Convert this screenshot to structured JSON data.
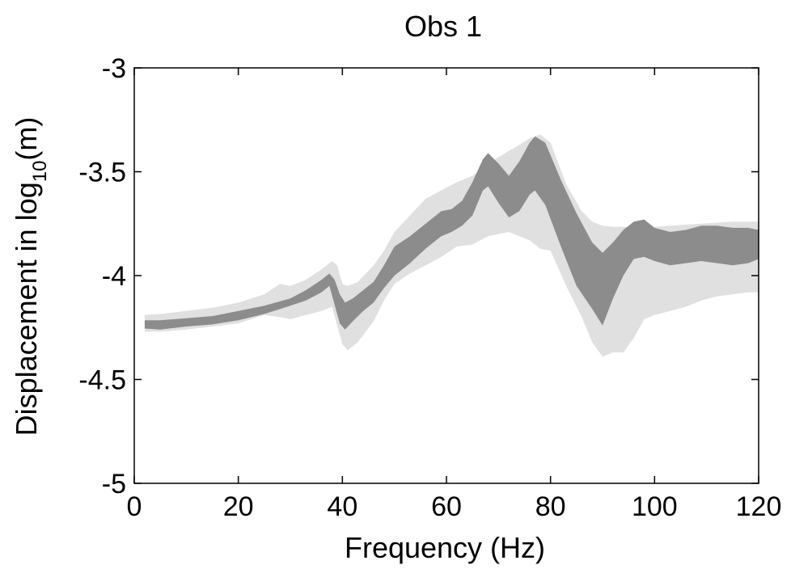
{
  "chart_data": {
    "type": "area",
    "title": "Obs 1",
    "xlabel": "Frequency (Hz)",
    "ylabel": {
      "prefix": "Displacement in log",
      "subscript": "10",
      "suffix": "(m)"
    },
    "xlim": [
      0,
      120
    ],
    "ylim": [
      -5,
      -3
    ],
    "x_ticks": [
      0,
      20,
      40,
      60,
      80,
      100,
      120
    ],
    "y_ticks": [
      -3,
      -3.5,
      -4,
      -4.5,
      -5
    ],
    "x_tick_labels": [
      "0",
      "20",
      "40",
      "60",
      "80",
      "100",
      "120"
    ],
    "y_tick_labels": [
      "-3",
      "-3.5",
      "-4",
      "-4.5",
      "-5"
    ],
    "grid": false,
    "colors": {
      "outer_band": "#e0e0e0",
      "inner_band": "#8c8c8c",
      "axes": "#000000"
    },
    "series": [
      {
        "band": "outer",
        "x": [
          2,
          5,
          10,
          15,
          20,
          25,
          28,
          30,
          33,
          36,
          38,
          39,
          40,
          41,
          43,
          46,
          48,
          50,
          53,
          56,
          59,
          62,
          65,
          68,
          70,
          72,
          74,
          76,
          78,
          80,
          83,
          86,
          88,
          90,
          92,
          94,
          96,
          98,
          100,
          103,
          106,
          109,
          112,
          115,
          118,
          120
        ],
        "upper": [
          -4.19,
          -4.185,
          -4.17,
          -4.155,
          -4.13,
          -4.09,
          -4.04,
          -4.05,
          -4.02,
          -3.97,
          -3.93,
          -3.95,
          -4.04,
          -4.05,
          -4.03,
          -3.95,
          -3.88,
          -3.79,
          -3.71,
          -3.63,
          -3.59,
          -3.55,
          -3.52,
          -3.46,
          -3.43,
          -3.4,
          -3.37,
          -3.34,
          -3.32,
          -3.36,
          -3.56,
          -3.69,
          -3.74,
          -3.76,
          -3.765,
          -3.765,
          -3.77,
          -3.77,
          -3.765,
          -3.76,
          -3.755,
          -3.75,
          -3.745,
          -3.74,
          -3.74,
          -3.74
        ],
        "lower": [
          -4.27,
          -4.27,
          -4.26,
          -4.245,
          -4.23,
          -4.19,
          -4.2,
          -4.21,
          -4.19,
          -4.17,
          -4.15,
          -4.24,
          -4.33,
          -4.36,
          -4.32,
          -4.22,
          -4.12,
          -4.04,
          -3.99,
          -3.95,
          -3.91,
          -3.86,
          -3.85,
          -3.81,
          -3.8,
          -3.79,
          -3.81,
          -3.83,
          -3.87,
          -3.88,
          -4.05,
          -4.2,
          -4.32,
          -4.39,
          -4.37,
          -4.37,
          -4.3,
          -4.21,
          -4.19,
          -4.17,
          -4.15,
          -4.12,
          -4.1,
          -4.09,
          -4.08,
          -4.08
        ]
      },
      {
        "band": "inner",
        "x": [
          2,
          5,
          10,
          15,
          20,
          25,
          30,
          33,
          36,
          37.5,
          38.5,
          39.5,
          40.5,
          42,
          44,
          46,
          48,
          50,
          53,
          56,
          59,
          61,
          63,
          65,
          67,
          68,
          70,
          72,
          74,
          76,
          77,
          79,
          82,
          85,
          88,
          90,
          92,
          94,
          96,
          98,
          100,
          103,
          106,
          109,
          112,
          115,
          118,
          120
        ],
        "upper": [
          -4.215,
          -4.215,
          -4.205,
          -4.195,
          -4.17,
          -4.145,
          -4.11,
          -4.07,
          -4.02,
          -3.99,
          -4.02,
          -4.09,
          -4.13,
          -4.11,
          -4.07,
          -4.03,
          -3.95,
          -3.86,
          -3.81,
          -3.75,
          -3.69,
          -3.68,
          -3.64,
          -3.55,
          -3.44,
          -3.41,
          -3.46,
          -3.52,
          -3.45,
          -3.36,
          -3.33,
          -3.36,
          -3.54,
          -3.7,
          -3.84,
          -3.89,
          -3.84,
          -3.78,
          -3.74,
          -3.73,
          -3.77,
          -3.79,
          -3.78,
          -3.76,
          -3.76,
          -3.77,
          -3.77,
          -3.78
        ],
        "lower": [
          -4.255,
          -4.26,
          -4.245,
          -4.235,
          -4.215,
          -4.185,
          -4.145,
          -4.12,
          -4.08,
          -4.05,
          -4.14,
          -4.23,
          -4.26,
          -4.22,
          -4.17,
          -4.13,
          -4.06,
          -4.0,
          -3.94,
          -3.87,
          -3.81,
          -3.79,
          -3.76,
          -3.71,
          -3.59,
          -3.57,
          -3.65,
          -3.72,
          -3.69,
          -3.61,
          -3.59,
          -3.66,
          -3.86,
          -4.05,
          -4.16,
          -4.24,
          -4.11,
          -4.0,
          -3.92,
          -3.91,
          -3.93,
          -3.95,
          -3.94,
          -3.93,
          -3.94,
          -3.95,
          -3.94,
          -3.92
        ]
      }
    ]
  }
}
